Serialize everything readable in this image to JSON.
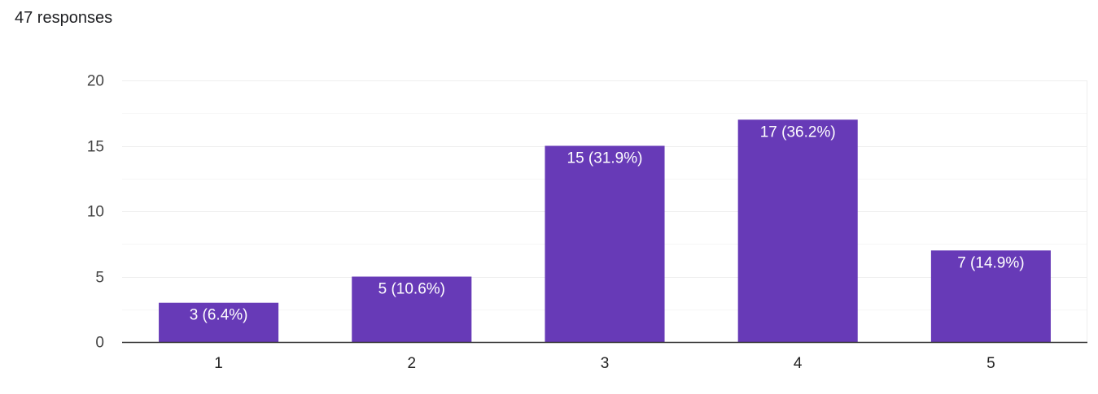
{
  "summary": {
    "responses_label": "47 responses"
  },
  "chart_data": {
    "type": "bar",
    "categories": [
      "1",
      "2",
      "3",
      "4",
      "5"
    ],
    "values": [
      3,
      5,
      15,
      17,
      7
    ],
    "data_labels": [
      "3 (6.4%)",
      "5 (10.6%)",
      "15 (31.9%)",
      "17 (36.2%)",
      "7 (14.9%)"
    ],
    "title": "",
    "xlabel": "",
    "ylabel": "",
    "ylim": [
      0,
      20
    ],
    "yticks": [
      0,
      5,
      10,
      15,
      20
    ],
    "grid": true,
    "minor_grid": true,
    "legend": "none",
    "colors": {
      "bar": "#673ab7",
      "grid": "#eeeeee",
      "minor_grid": "#f6f6f6",
      "axis": "#333333"
    }
  }
}
